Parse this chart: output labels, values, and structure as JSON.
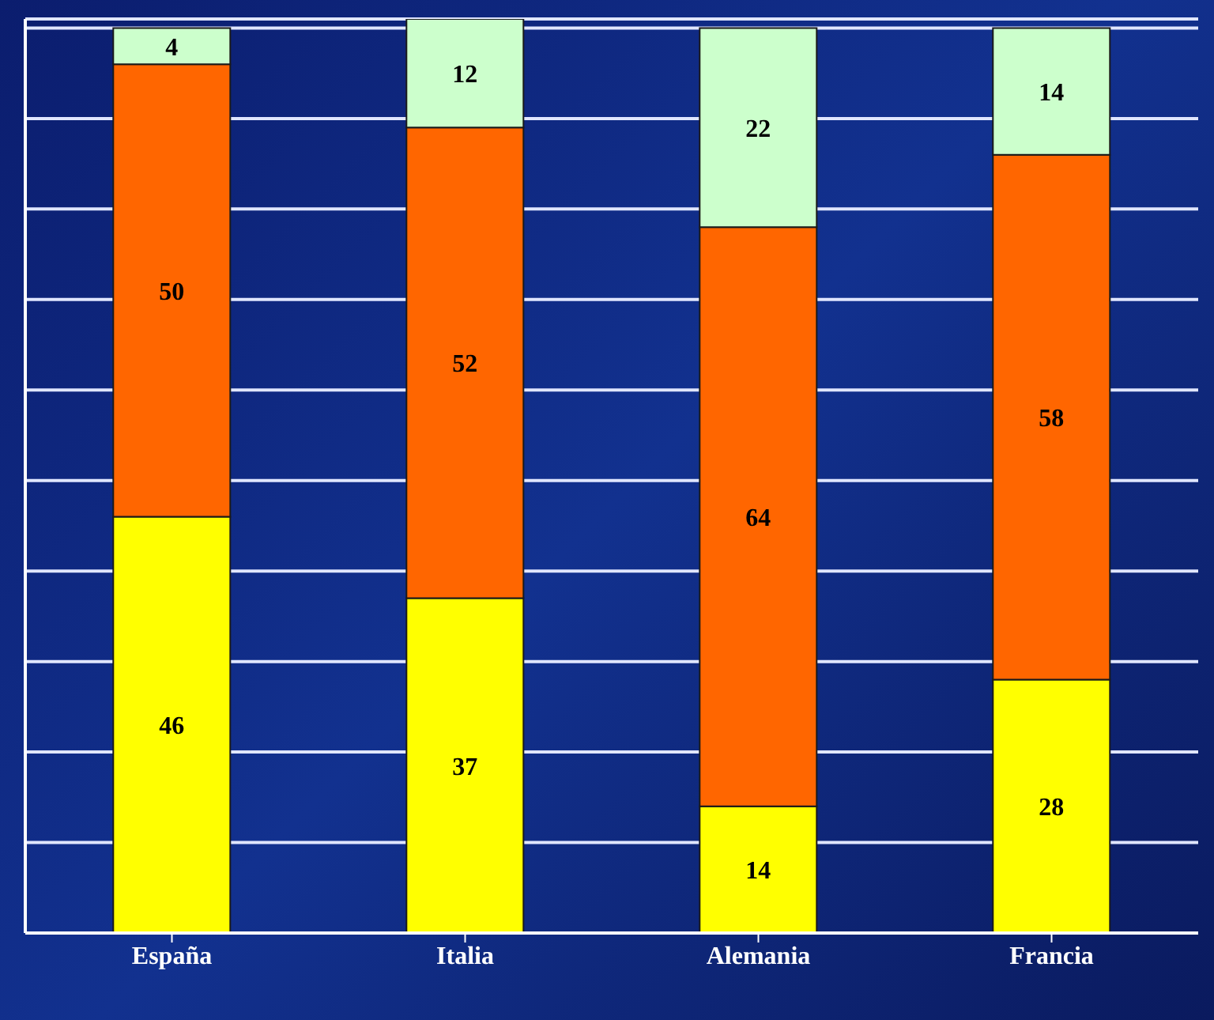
{
  "chart_data": {
    "type": "bar",
    "stacked": true,
    "categories": [
      "España",
      "Italia",
      "Alemania",
      "Francia"
    ],
    "series": [
      {
        "color": "#ffff00",
        "values": [
          46,
          37,
          14,
          28
        ]
      },
      {
        "color": "#ff6600",
        "values": [
          50,
          52,
          64,
          58
        ]
      },
      {
        "color": "#ccffcc",
        "values": [
          4,
          12,
          22,
          14
        ]
      }
    ],
    "ylim": [
      0,
      101
    ],
    "yticks": [
      {
        "value": 0,
        "label": null
      },
      {
        "value": 10,
        "label": null
      },
      {
        "value": 20,
        "label": null
      },
      {
        "value": 30,
        "label": null
      },
      {
        "value": 40,
        "label": null
      },
      {
        "value": 50,
        "label": null
      },
      {
        "value": 60,
        "label": null
      },
      {
        "value": 70,
        "label": null
      },
      {
        "value": 80,
        "label": null
      },
      {
        "value": 90,
        "label": null
      },
      {
        "value": 100,
        "label": null
      }
    ],
    "grid": "y",
    "tick_labels": "x",
    "data_labels": true
  }
}
